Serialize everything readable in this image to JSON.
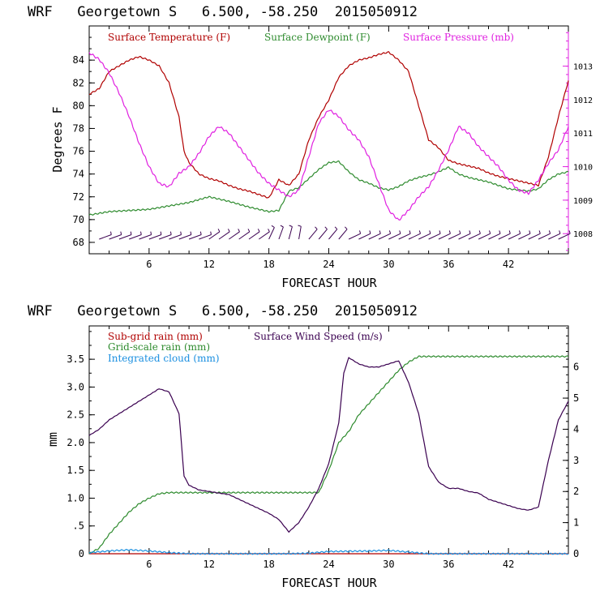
{
  "colors": {
    "temp": "#b00000",
    "dew": "#2e8b2e",
    "press": "#e020e0",
    "wind": "#3a0050",
    "rain_grid": "#2e8b2e",
    "cloud": "#1a8fe0",
    "barb": "#3a0050"
  },
  "chart_data": [
    {
      "type": "line",
      "title": "WRF   Georgetown S   6.500, -58.250  2015050912",
      "xlabel": "FORECAST HOUR",
      "ylabel": "Degrees F",
      "xlim": [
        0,
        48
      ],
      "ylim": [
        67,
        87
      ],
      "y2lim": [
        1007.4,
        1014.2
      ],
      "xticks": [
        "6",
        "12",
        "18",
        "24",
        "30",
        "36",
        "42"
      ],
      "yticks": [
        "68",
        "70",
        "72",
        "74",
        "76",
        "78",
        "80",
        "82",
        "84"
      ],
      "y2ticks": [
        "1008",
        "1009",
        "1010",
        "1011",
        "1012",
        "1013"
      ],
      "wind_barbs": "yes",
      "series": [
        {
          "name": "Surface Temperature (F)",
          "axis": "left",
          "x": [
            0,
            1,
            2,
            3,
            4,
            5,
            6,
            7,
            8,
            9,
            9.5,
            10,
            11,
            12,
            13,
            14,
            15,
            16,
            17,
            18,
            19,
            20,
            21,
            22,
            23,
            24,
            25,
            26,
            27,
            28,
            29,
            30,
            31,
            32,
            33,
            34,
            35,
            36,
            37,
            38,
            39,
            40,
            41,
            42,
            43,
            44,
            45,
            46,
            47,
            48
          ],
          "values": [
            81.0,
            81.5,
            83.0,
            83.5,
            84.0,
            84.3,
            84.0,
            83.5,
            82.0,
            79.0,
            76.0,
            75.0,
            74.0,
            73.6,
            73.4,
            73.0,
            72.7,
            72.5,
            72.2,
            71.9,
            73.5,
            73.0,
            74.0,
            77.0,
            79.0,
            80.5,
            82.5,
            83.5,
            84.0,
            84.2,
            84.5,
            84.7,
            84.0,
            83.0,
            80.0,
            77.0,
            76.3,
            75.2,
            74.9,
            74.7,
            74.5,
            74.1,
            73.8,
            73.6,
            73.4,
            73.2,
            73.0,
            75.5,
            79.0,
            82.2
          ]
        },
        {
          "name": "Surface Dewpoint (F)",
          "axis": "left",
          "x": [
            0,
            2,
            4,
            6,
            8,
            10,
            12,
            14,
            16,
            18,
            19,
            20,
            21,
            22,
            23,
            24,
            25,
            26,
            27,
            28,
            29,
            30,
            31,
            32,
            33,
            34,
            35,
            36,
            37,
            38,
            40,
            42,
            44,
            45,
            46,
            47,
            48
          ],
          "values": [
            70.4,
            70.7,
            70.8,
            70.9,
            71.2,
            71.5,
            72.0,
            71.6,
            71.1,
            70.7,
            70.8,
            72.5,
            72.8,
            73.6,
            74.4,
            75.0,
            75.1,
            74.2,
            73.5,
            73.2,
            72.8,
            72.6,
            72.9,
            73.4,
            73.7,
            73.9,
            74.2,
            74.6,
            74.0,
            73.7,
            73.3,
            72.7,
            72.5,
            72.7,
            73.5,
            74.0,
            74.2
          ]
        },
        {
          "name": "Surface Pressure (mb)",
          "axis": "right",
          "x": [
            0,
            1,
            2,
            3,
            4,
            5,
            6,
            7,
            8,
            9,
            10,
            11,
            12,
            13,
            14,
            15,
            16,
            17,
            18,
            19,
            20,
            21,
            22,
            23,
            24,
            25,
            26,
            27,
            28,
            29,
            30,
            31,
            32,
            33,
            34,
            35,
            36,
            37,
            38,
            39,
            40,
            41,
            42,
            43,
            44,
            45,
            46,
            47,
            48
          ],
          "values": [
            1013.4,
            1013.2,
            1012.8,
            1012.2,
            1011.5,
            1010.7,
            1010.0,
            1009.5,
            1009.4,
            1009.8,
            1010.0,
            1010.4,
            1010.9,
            1011.2,
            1011.0,
            1010.6,
            1010.2,
            1009.8,
            1009.5,
            1009.3,
            1009.1,
            1009.3,
            1010.3,
            1011.3,
            1011.7,
            1011.5,
            1011.1,
            1010.8,
            1010.3,
            1009.5,
            1008.7,
            1008.4,
            1008.7,
            1009.1,
            1009.4,
            1009.9,
            1010.5,
            1011.2,
            1011.0,
            1010.6,
            1010.3,
            1010.0,
            1009.6,
            1009.3,
            1009.2,
            1009.6,
            1010.1,
            1010.5,
            1011.2
          ]
        }
      ]
    },
    {
      "type": "line",
      "title": "WRF   Georgetown S   6.500, -58.250  2015050912",
      "xlabel": "FORECAST HOUR",
      "ylabel": "mm",
      "xlim": [
        0,
        48
      ],
      "ylim": [
        0,
        4.1
      ],
      "y2lim": [
        0,
        7.32
      ],
      "xticks": [
        "6",
        "12",
        "18",
        "24",
        "30",
        "36",
        "42"
      ],
      "yticks": [
        "0",
        ".5",
        "1.0",
        "1.5",
        "2.0",
        "2.5",
        "3.0",
        "3.5"
      ],
      "y2ticks": [
        "0",
        "1",
        "2",
        "3",
        "4",
        "5",
        "6"
      ],
      "series": [
        {
          "name": "Sub-grid rain (mm)",
          "axis": "left",
          "x": [
            0,
            48
          ],
          "values": [
            0,
            0
          ]
        },
        {
          "name": "Grid-scale rain (mm)",
          "axis": "left",
          "x": [
            0,
            1,
            2,
            3,
            4,
            5,
            6,
            7,
            8,
            9,
            10,
            12,
            16,
            20,
            22,
            23,
            24,
            25,
            26,
            27,
            28,
            29,
            30,
            31,
            32,
            33,
            34,
            36,
            40,
            44,
            48
          ],
          "values": [
            0,
            0.1,
            0.35,
            0.55,
            0.75,
            0.9,
            1.0,
            1.08,
            1.1,
            1.1,
            1.1,
            1.1,
            1.1,
            1.1,
            1.1,
            1.1,
            1.5,
            2.0,
            2.2,
            2.5,
            2.7,
            2.9,
            3.1,
            3.3,
            3.45,
            3.55,
            3.55,
            3.55,
            3.55,
            3.55,
            3.55
          ]
        },
        {
          "name": "Integrated cloud (mm)",
          "axis": "left",
          "x": [
            0,
            2,
            4,
            6,
            8,
            10,
            20,
            22,
            24,
            28,
            30,
            32,
            34,
            48
          ],
          "values": [
            0.02,
            0.05,
            0.07,
            0.05,
            0.02,
            0.0,
            0.0,
            0.01,
            0.04,
            0.05,
            0.06,
            0.03,
            0.0,
            0.0
          ]
        },
        {
          "name": "Surface Wind Speed (m/s)",
          "axis": "right",
          "x": [
            0,
            1,
            2,
            3,
            4,
            5,
            6,
            7,
            8,
            9,
            9.5,
            10,
            11,
            12,
            13,
            14,
            15,
            16,
            17,
            18,
            19,
            20,
            21,
            22,
            23,
            24,
            25,
            25.5,
            26,
            27,
            28,
            29,
            30,
            31,
            32,
            33,
            34,
            35,
            36,
            37,
            38,
            39,
            40,
            41,
            42,
            43,
            44,
            45,
            46,
            47,
            48
          ],
          "values": [
            3.8,
            4.0,
            4.3,
            4.5,
            4.7,
            4.9,
            5.1,
            5.3,
            5.2,
            4.5,
            2.5,
            2.2,
            2.05,
            2.0,
            1.95,
            1.9,
            1.75,
            1.6,
            1.45,
            1.3,
            1.1,
            0.7,
            1.0,
            1.5,
            2.1,
            2.9,
            4.2,
            5.8,
            6.3,
            6.1,
            6.0,
            6.0,
            6.1,
            6.2,
            5.5,
            4.5,
            2.8,
            2.3,
            2.1,
            2.1,
            2.0,
            1.95,
            1.75,
            1.65,
            1.55,
            1.45,
            1.4,
            1.5,
            3.0,
            4.3,
            4.9
          ]
        }
      ]
    }
  ]
}
